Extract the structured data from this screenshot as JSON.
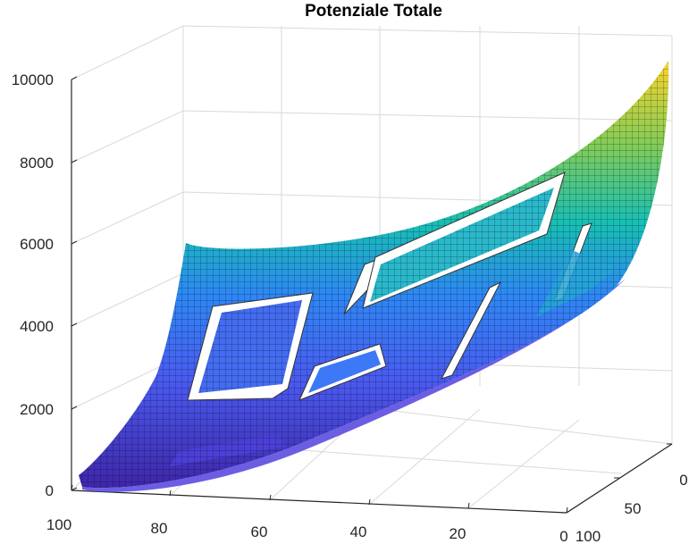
{
  "chart_data": {
    "type": "surface",
    "title": "Potenziale Totale",
    "xlabel": "",
    "ylabel": "",
    "zlabel": "",
    "x_ticks": [
      "100",
      "80",
      "60",
      "40",
      "20",
      "0"
    ],
    "y_ticks": [
      "0",
      "50",
      "100"
    ],
    "z_ticks": [
      "0",
      "2000",
      "4000",
      "6000",
      "8000",
      "10000"
    ],
    "xlim": [
      0,
      100
    ],
    "ylim": [
      0,
      100
    ],
    "zlim": [
      0,
      10000
    ],
    "grid": true,
    "colormap": "parula",
    "z_range_observed": [
      0,
      10000
    ],
    "colors": {
      "low": "#3e26a8",
      "mid_low": "#2e87f5",
      "mid": "#17bfb4",
      "mid_high": "#81cc59",
      "high": "#f9d32a"
    }
  }
}
